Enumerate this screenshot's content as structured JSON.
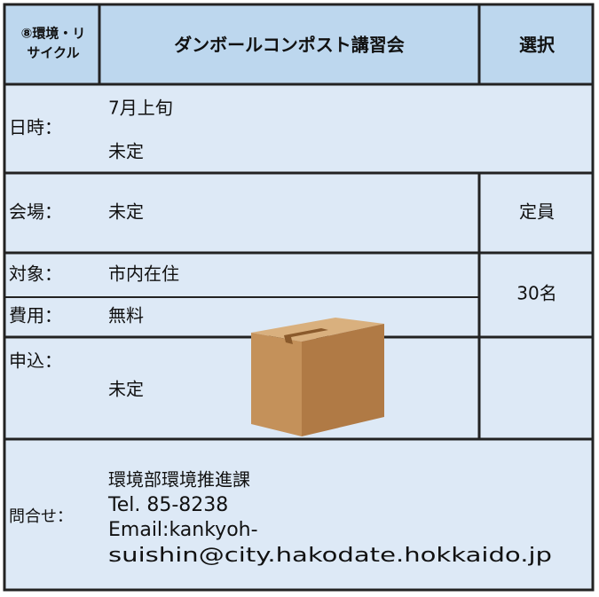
{
  "header": {
    "category_lines": [
      "⑧環境・リ",
      "サイクル"
    ],
    "title": "ダンボールコンポスト講習会",
    "select": "選択"
  },
  "schedule": {
    "label": "日時：",
    "lines": [
      "7月上旬",
      "未定"
    ]
  },
  "venue": {
    "label": "会場：",
    "value": "未定"
  },
  "capacity": {
    "label": "定員",
    "value": "30名"
  },
  "target": {
    "label": "対象：",
    "value": "市内在住"
  },
  "fee": {
    "label": "費用：",
    "value": "無料"
  },
  "apply": {
    "label": "申込：",
    "value": "未定"
  },
  "contact": {
    "label": "問合せ：",
    "lines": [
      "環境部環境推進課",
      "Tel. 85-8238",
      "Email:kankyoh-",
      "suishin@city.hakodate.hokkaido.jp"
    ]
  }
}
